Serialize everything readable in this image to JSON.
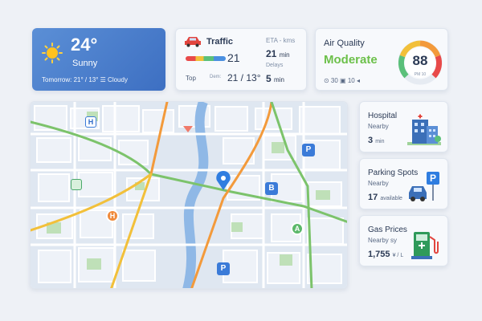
{
  "weather": {
    "temperature": "24°",
    "condition": "Sunny",
    "tomorrow": "Tomorrow: 21° / 13°  ☰ Cloudy",
    "icon": "sun-icon"
  },
  "traffic": {
    "title": "Traffic",
    "current": "21",
    "top_label": "Top",
    "top_sub": "Dem:",
    "top_value": "21 / 13°",
    "eta_label": "ETA - kms",
    "eta_value": "21",
    "eta_unit": "min",
    "delays_label": "Delays",
    "delays_value": "5",
    "delays_unit": "min",
    "icon": "car-icon"
  },
  "air_quality": {
    "title": "Air Quality",
    "status": "Moderate",
    "aqi": "88",
    "gauge_label": "PM 10",
    "footer": "⊙ 30   ▣ 10   ◂",
    "status_color": "#6cc04a",
    "level": 0.88
  },
  "map": {
    "markers": [
      {
        "label": "H",
        "kind": "hospital"
      },
      {
        "label": "P",
        "kind": "parking"
      },
      {
        "label": "B",
        "kind": "bus"
      },
      {
        "label": "A",
        "kind": "attraction"
      },
      {
        "label": "H",
        "kind": "hospital-orange"
      },
      {
        "label": "P",
        "kind": "parking"
      }
    ]
  },
  "hospital": {
    "title": "Hospital",
    "subtitle": "Nearby",
    "value": "3",
    "unit": "min",
    "icon": "hospital-building-icon"
  },
  "parking": {
    "title": "Parking Spots",
    "subtitle": "Nearby",
    "value": "17",
    "unit": "available",
    "icon": "parking-icon"
  },
  "gas": {
    "title": "Gas Prices",
    "subtitle": "Nearby sy",
    "value": "1,755",
    "unit": "¥ / L",
    "icon": "gas-pump-icon"
  }
}
